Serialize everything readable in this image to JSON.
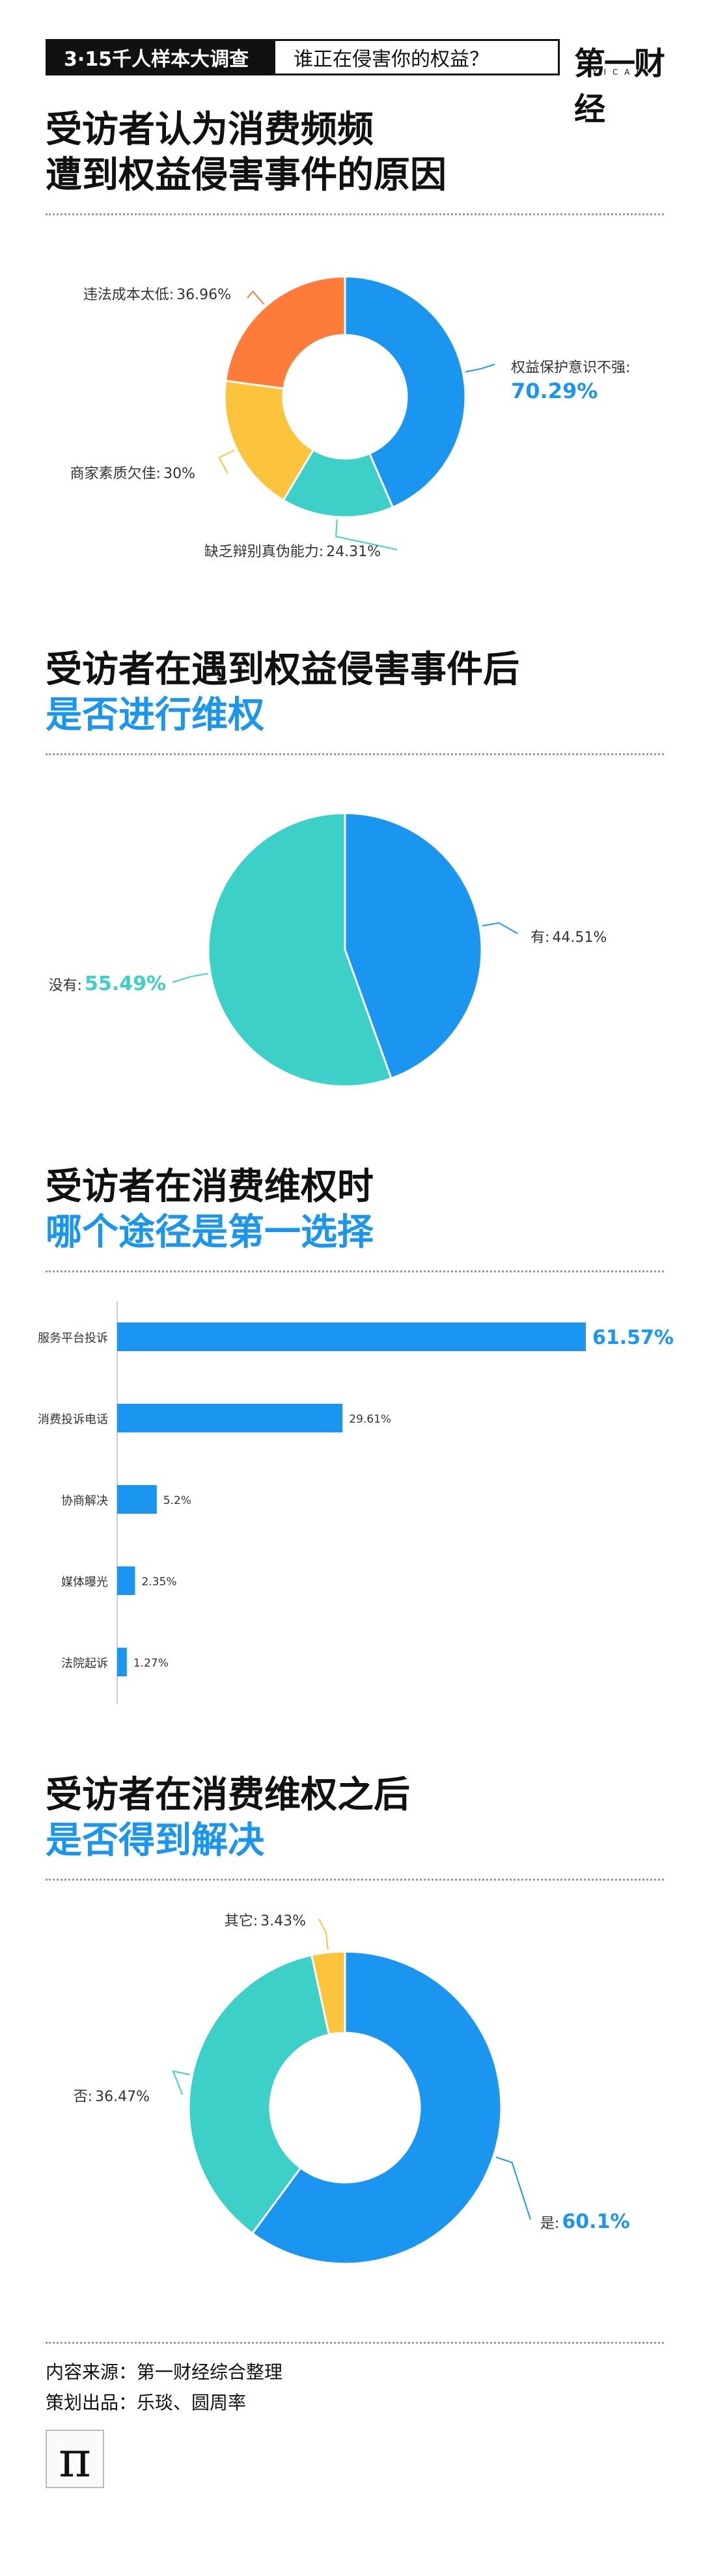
{
  "header": {
    "tag_dark": "3·15千人样本大调查",
    "tag_light": "谁正在侵害你的权益？",
    "brand": "第一财经",
    "brand_sub": "YICAI"
  },
  "sections": [
    {
      "title_line1": "受访者认为消费频频",
      "title_line2": "遭到权益侵害事件的原因"
    },
    {
      "title_line1": "受访者在遇到权益侵害事件后",
      "title_line2": "是否进行维权"
    },
    {
      "title_line1": "受访者在消费维权时",
      "title_line2": "哪个途径是第一选择"
    },
    {
      "title_line1": "受访者在消费维权之后",
      "title_line2": "是否得到解决"
    }
  ],
  "chart_data": [
    {
      "type": "pie",
      "donut": true,
      "slices": [
        {
          "label": "权益保护意识不强:",
          "value_text": "70.29%",
          "value": 70.29,
          "color": "#1a96f0"
        },
        {
          "label": "缺乏辩别真伪能力:",
          "value_text": "24.31%",
          "value": 24.31,
          "color": "#3dd0c8"
        },
        {
          "label": "商家素质欠佳:",
          "value_text": "30%",
          "value": 30,
          "color": "#fcc43c"
        },
        {
          "label": "违法成本太低:",
          "value_text": "36.96%",
          "value": 36.96,
          "color": "#ff7b3a"
        }
      ]
    },
    {
      "type": "pie",
      "donut": false,
      "slices": [
        {
          "label": "有:",
          "value_text": "44.51%",
          "value": 44.51,
          "color": "#1a96f0"
        },
        {
          "label": "没有:",
          "value_text": "55.49%",
          "value": 55.49,
          "color": "#3dd0c8"
        }
      ]
    },
    {
      "type": "bar",
      "orientation": "horizontal",
      "categories": [
        "服务平台投诉",
        "消费投诉电话",
        "协商解决",
        "媒体曝光",
        "法院起诉"
      ],
      "values": [
        61.57,
        29.61,
        5.2,
        2.35,
        1.27
      ],
      "value_labels": [
        "61.57%",
        "29.61%",
        "5.2%",
        "2.35%",
        "1.27%"
      ],
      "color": "#1a96f0"
    },
    {
      "type": "pie",
      "donut": true,
      "slices": [
        {
          "label": "是:",
          "value_text": "60.1%",
          "value": 60.1,
          "color": "#1a96f0"
        },
        {
          "label": "否:",
          "value_text": "36.47%",
          "value": 36.47,
          "color": "#3dd0c8"
        },
        {
          "label": "其它:",
          "value_text": "3.43%",
          "value": 3.43,
          "color": "#fcc43c"
        }
      ]
    }
  ],
  "footer": {
    "source": "内容来源：第一财经综合整理",
    "credits": "策划出品：乐琰、圆周率",
    "logo_glyph": "π"
  }
}
